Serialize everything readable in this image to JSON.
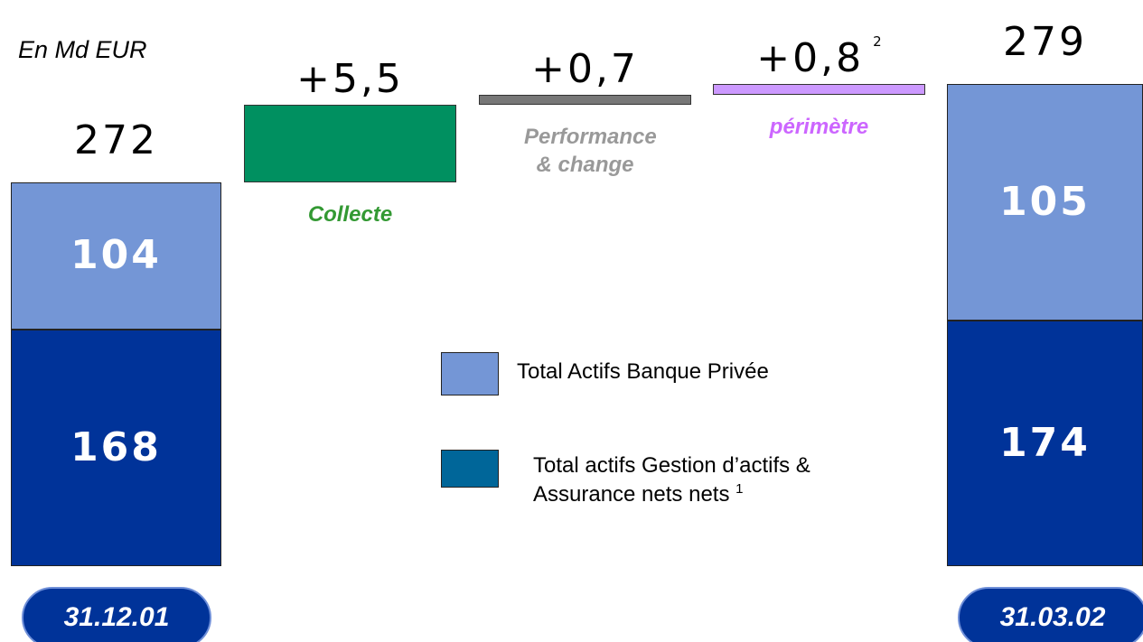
{
  "chart_data": {
    "type": "waterfall",
    "unit": "En Md EUR",
    "categories": [
      "31.12.01",
      "31.03.02"
    ],
    "series": [
      {
        "name": "Total actifs Gestion d’actifs & Assurance nets nets",
        "note": "1",
        "color": "#003399",
        "legend_color": "#006699",
        "values": [
          168,
          174
        ]
      },
      {
        "name": "Total Actifs Banque Privée",
        "color": "#7496d6",
        "legend_color": "#7496d6",
        "values": [
          104,
          105
        ]
      }
    ],
    "totals": [
      272,
      279
    ],
    "steps": [
      {
        "name": "Collecte",
        "value": 5.5,
        "value_label": "+5,5",
        "color": "#009060",
        "label_color": "#339933"
      },
      {
        "name": "Performance & change",
        "value": 0.7,
        "value_label": "+0,7",
        "color": "#777777",
        "label_color": "#999999"
      },
      {
        "name": "périmètre",
        "value": 0.8,
        "value_label": "+0,8",
        "note": "2",
        "color": "#cc99ff",
        "label_color": "#cc66ff"
      }
    ]
  }
}
